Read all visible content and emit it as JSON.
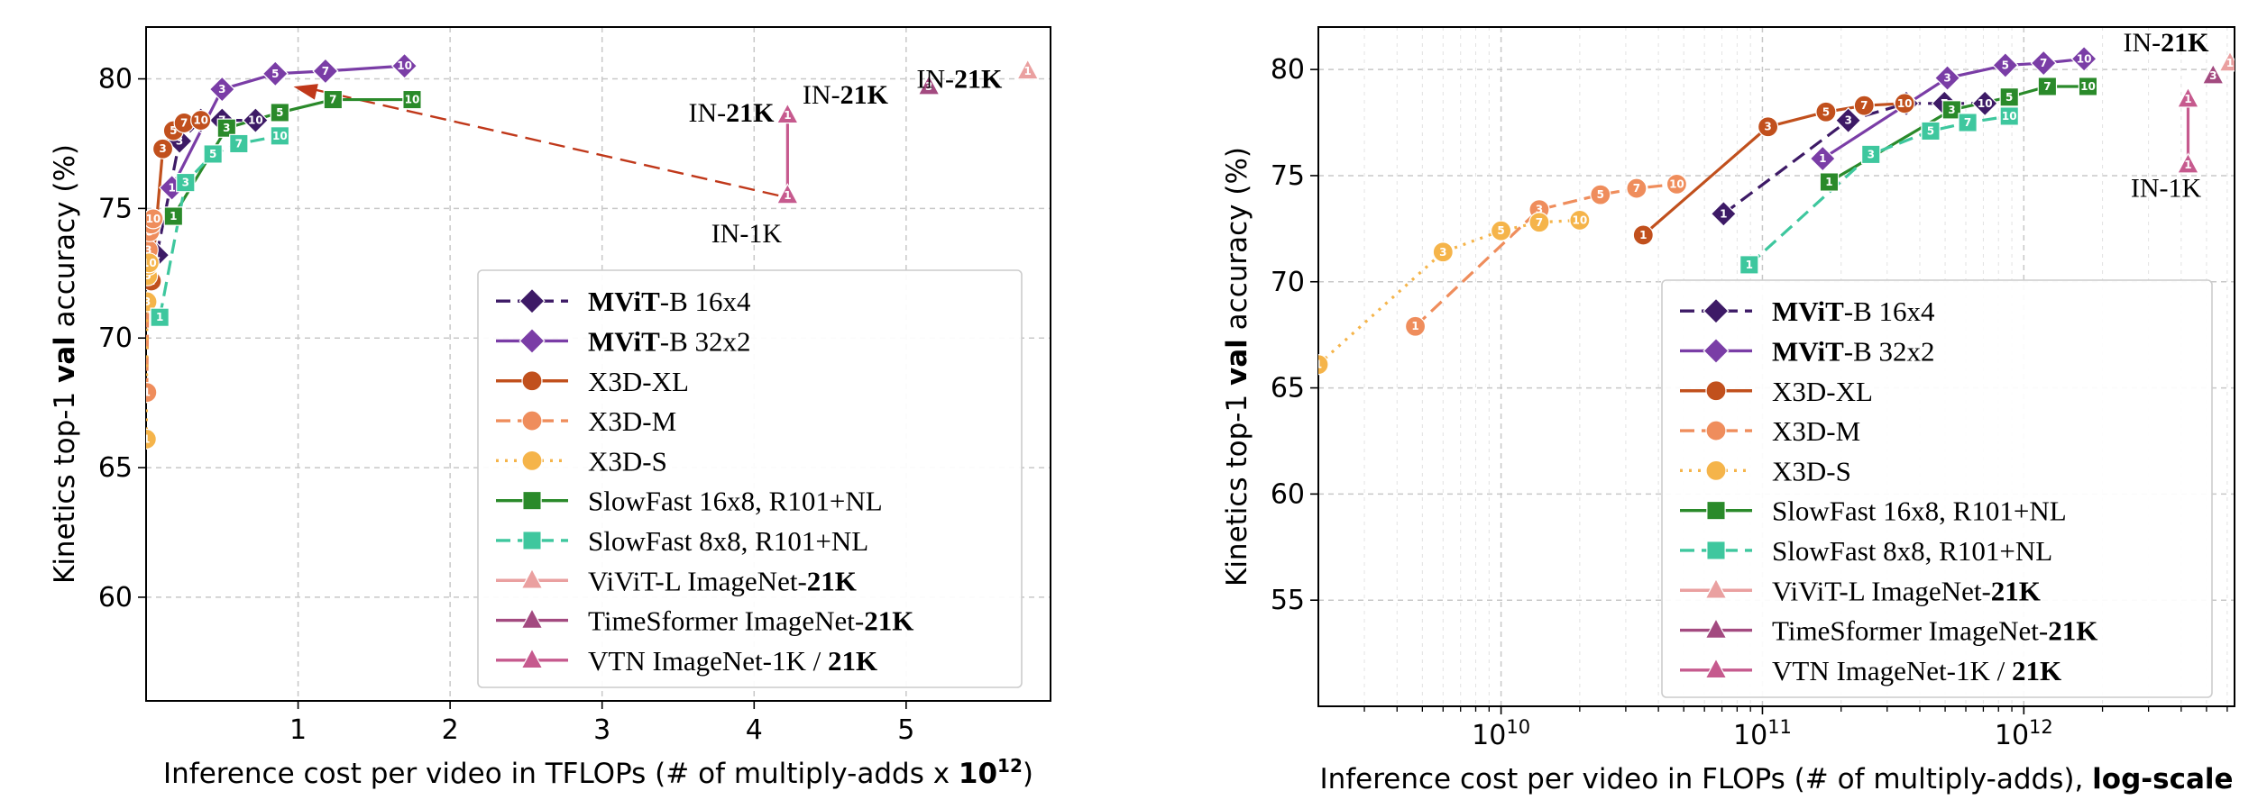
{
  "chart_data": [
    {
      "type": "line",
      "xscale": "linear",
      "xlim": [
        0.0,
        5.95
      ],
      "ylim": [
        56.0,
        82.0
      ],
      "xticks": [
        {
          "v": 1,
          "t": "1"
        },
        {
          "v": 2,
          "t": "2"
        },
        {
          "v": 3,
          "t": "3"
        },
        {
          "v": 4,
          "t": "4"
        },
        {
          "v": 5,
          "t": "5"
        }
      ],
      "yticks": [
        {
          "v": 60,
          "t": "60"
        },
        {
          "v": 65,
          "t": "65"
        },
        {
          "v": 70,
          "t": "70"
        },
        {
          "v": 75,
          "t": "75"
        },
        {
          "v": 80,
          "t": "80"
        }
      ],
      "xlabel": [
        {
          "t": "Inference cost per video in TFLOPs (# of multiply-adds x "
        },
        {
          "t": "10",
          "b": true
        },
        {
          "t": "12",
          "b": true,
          "sup": true
        },
        {
          "t": ")"
        }
      ],
      "ylabel": [
        {
          "t": "Kinetics top-1 "
        },
        {
          "t": "val",
          "b": true
        },
        {
          "t": " accuracy (%)"
        }
      ],
      "grid": true,
      "legend_position": "lower-right",
      "series": [
        {
          "key": "mvit16",
          "points": [
            [
              0.07,
              73.2,
              "1"
            ],
            [
              0.22,
              77.6,
              "3"
            ],
            [
              0.36,
              78.4,
              "5"
            ],
            [
              0.5,
              78.4,
              "7"
            ],
            [
              0.72,
              78.4,
              "10"
            ]
          ]
        },
        {
          "key": "mvit32",
          "points": [
            [
              0.17,
              75.8,
              "1"
            ],
            [
              0.5,
              79.6,
              "3"
            ],
            [
              0.85,
              80.2,
              "5"
            ],
            [
              1.18,
              80.3,
              "7"
            ],
            [
              1.7,
              80.5,
              "10"
            ]
          ]
        },
        {
          "key": "x3dxl",
          "points": [
            [
              0.035,
              72.2,
              "1"
            ],
            [
              0.11,
              77.3,
              "3"
            ],
            [
              0.18,
              78.0,
              "5"
            ],
            [
              0.25,
              78.3,
              "7"
            ],
            [
              0.36,
              78.4,
              "10"
            ]
          ]
        },
        {
          "key": "x3dm",
          "points": [
            [
              0.005,
              67.9,
              "1"
            ],
            [
              0.014,
              73.4,
              "3"
            ],
            [
              0.024,
              74.1,
              "5"
            ],
            [
              0.034,
              74.4,
              "7"
            ],
            [
              0.047,
              74.6,
              "10"
            ]
          ]
        },
        {
          "key": "x3ds",
          "points": [
            [
              0.002,
              66.1,
              "1"
            ],
            [
              0.006,
              71.4,
              "3"
            ],
            [
              0.01,
              72.4,
              "5"
            ],
            [
              0.014,
              72.8,
              "7"
            ],
            [
              0.02,
              72.9,
              "10"
            ]
          ]
        },
        {
          "key": "sf16",
          "points": [
            [
              0.18,
              74.7,
              "1"
            ],
            [
              0.53,
              78.1,
              "3"
            ],
            [
              0.88,
              78.7,
              "5"
            ],
            [
              1.23,
              79.2,
              "7"
            ],
            [
              1.75,
              79.2,
              "10"
            ]
          ]
        },
        {
          "key": "sf8",
          "points": [
            [
              0.09,
              70.8,
              "1"
            ],
            [
              0.26,
              76.0,
              "3"
            ],
            [
              0.44,
              77.1,
              "5"
            ],
            [
              0.61,
              77.5,
              "7"
            ],
            [
              0.88,
              77.8,
              "10"
            ]
          ]
        },
        {
          "key": "vivit",
          "points": [
            [
              5.8,
              80.3,
              "1"
            ]
          ]
        },
        {
          "key": "tsf",
          "points": [
            [
              5.15,
              79.7,
              "3"
            ]
          ]
        },
        {
          "key": "vtn",
          "points": [
            [
              4.22,
              75.5,
              "1"
            ],
            [
              4.22,
              78.6,
              "1"
            ]
          ]
        }
      ],
      "annotations": [
        {
          "t": "IN-21K",
          "x": 3.85,
          "y": 78.35
        },
        {
          "t": "IN-1K",
          "x": 3.95,
          "y": 73.7
        },
        {
          "t": "IN-21K",
          "x": 4.6,
          "y": 79.05
        },
        {
          "t": "IN-21K",
          "x": 5.35,
          "y": 79.65
        }
      ],
      "arrow": {
        "from": [
          4.16,
          75.5
        ],
        "to": [
          0.97,
          79.7
        ]
      }
    },
    {
      "type": "line",
      "xscale": "log",
      "xlim": [
        2000000000.0,
        6400000000000.0
      ],
      "ylim": [
        50.0,
        82.0
      ],
      "xticks": [
        {
          "v": 10000000000.0,
          "t": "10",
          "e": "10"
        },
        {
          "v": 100000000000.0,
          "t": "10",
          "e": "11"
        },
        {
          "v": 1000000000000.0,
          "t": "10",
          "e": "12"
        }
      ],
      "yticks": [
        {
          "v": 55,
          "t": "55"
        },
        {
          "v": 60,
          "t": "60"
        },
        {
          "v": 65,
          "t": "65"
        },
        {
          "v": 70,
          "t": "70"
        },
        {
          "v": 75,
          "t": "75"
        },
        {
          "v": 80,
          "t": "80"
        }
      ],
      "xlabel": [
        {
          "t": "Inference cost per video in FLOPs (# of multiply-adds), "
        },
        {
          "t": "log-scale",
          "b": true
        }
      ],
      "ylabel": [
        {
          "t": "Kinetics top-1 "
        },
        {
          "t": "val",
          "b": true
        },
        {
          "t": " accuracy (%)"
        }
      ],
      "grid": true,
      "legend_position": "lower-right",
      "series": [
        {
          "key": "mvit16",
          "points": [
            [
              71000000000.0,
              73.2,
              "1"
            ],
            [
              213000000000.0,
              77.6,
              "3"
            ],
            [
              355000000000.0,
              78.4,
              "5"
            ],
            [
              497000000000.0,
              78.4,
              "7"
            ],
            [
              710000000000.0,
              78.4,
              "10"
            ]
          ]
        },
        {
          "key": "mvit32",
          "points": [
            [
              170000000000.0,
              75.8,
              "1"
            ],
            [
              510000000000.0,
              79.6,
              "3"
            ],
            [
              850000000000.0,
              80.2,
              "5"
            ],
            [
              1190000000000.0,
              80.3,
              "7"
            ],
            [
              1700000000000.0,
              80.5,
              "10"
            ]
          ]
        },
        {
          "key": "x3dxl",
          "points": [
            [
              35000000000.0,
              72.2,
              "1"
            ],
            [
              105000000000.0,
              77.3,
              "3"
            ],
            [
              175000000000.0,
              78.0,
              "5"
            ],
            [
              245000000000.0,
              78.3,
              "7"
            ],
            [
              350000000000.0,
              78.4,
              "10"
            ]
          ]
        },
        {
          "key": "x3dm",
          "points": [
            [
              4700000000.0,
              67.9,
              "1"
            ],
            [
              14000000000.0,
              73.4,
              "3"
            ],
            [
              24000000000.0,
              74.1,
              "5"
            ],
            [
              33000000000.0,
              74.4,
              "7"
            ],
            [
              47000000000.0,
              74.6,
              "10"
            ]
          ]
        },
        {
          "key": "x3ds",
          "points": [
            [
              2000000000.0,
              66.1,
              "1"
            ],
            [
              6000000000.0,
              71.4,
              "3"
            ],
            [
              10000000000.0,
              72.4,
              "5"
            ],
            [
              14000000000.0,
              72.8,
              "7"
            ],
            [
              20000000000.0,
              72.9,
              "10"
            ]
          ]
        },
        {
          "key": "sf16",
          "points": [
            [
              180000000000.0,
              74.7,
              "1"
            ],
            [
              530000000000.0,
              78.1,
              "3"
            ],
            [
              880000000000.0,
              78.7,
              "5"
            ],
            [
              1230000000000.0,
              79.2,
              "7"
            ],
            [
              1760000000000.0,
              79.2,
              "10"
            ]
          ]
        },
        {
          "key": "sf8",
          "points": [
            [
              89000000000.0,
              70.8,
              "1"
            ],
            [
              260000000000.0,
              76.0,
              "3"
            ],
            [
              440000000000.0,
              77.1,
              "5"
            ],
            [
              610000000000.0,
              77.5,
              "7"
            ],
            [
              880000000000.0,
              77.8,
              "10"
            ]
          ]
        },
        {
          "key": "vivit",
          "points": [
            [
              6150000000000.0,
              80.3,
              "1"
            ]
          ]
        },
        {
          "key": "tsf",
          "points": [
            [
              5300000000000.0,
              79.7,
              "3"
            ]
          ]
        },
        {
          "key": "vtn",
          "points": [
            [
              4250000000000.0,
              75.5,
              "1"
            ],
            [
              4250000000000.0,
              78.6,
              "1"
            ]
          ]
        }
      ],
      "annotations": [
        {
          "t": "IN-21K",
          "x": 3500000000000.0,
          "y": 80.85
        },
        {
          "t": "IN-1K",
          "x": 3500000000000.0,
          "y": 74.0
        }
      ]
    }
  ],
  "legend": [
    {
      "key": "mvit16",
      "label": [
        {
          "t": "MViT",
          "b": true
        },
        {
          "t": "-B 16x4"
        }
      ],
      "color": "#3d1a66",
      "marker": "diamond",
      "dash": "dash",
      "fill": "#3d1a66"
    },
    {
      "key": "mvit32",
      "label": [
        {
          "t": "MViT",
          "b": true
        },
        {
          "t": "-B 32x2"
        }
      ],
      "color": "#7a3da6",
      "marker": "diamond",
      "dash": "solid",
      "fill": "#7a3da6"
    },
    {
      "key": "x3dxl",
      "label": [
        {
          "t": "X3D-XL"
        }
      ],
      "color": "#c1501d",
      "marker": "circle",
      "dash": "solid",
      "fill": "#c1501d"
    },
    {
      "key": "x3dm",
      "label": [
        {
          "t": "X3D-M"
        }
      ],
      "color": "#ef8d5c",
      "marker": "circle",
      "dash": "dash",
      "fill": "#ef8d5c"
    },
    {
      "key": "x3ds",
      "label": [
        {
          "t": "X3D-S"
        }
      ],
      "color": "#f5b44a",
      "marker": "circle",
      "dash": "dot",
      "fill": "#f5b44a"
    },
    {
      "key": "sf16",
      "label": [
        {
          "t": "SlowFast 16x8, R101+NL"
        }
      ],
      "color": "#2a8a2a",
      "marker": "square",
      "dash": "solid",
      "fill": "#2a8a2a"
    },
    {
      "key": "sf8",
      "label": [
        {
          "t": "SlowFast 8x8, R101+NL"
        }
      ],
      "color": "#3ec79e",
      "marker": "square",
      "dash": "dash",
      "fill": "#3ec79e"
    },
    {
      "key": "vivit",
      "label": [
        {
          "t": "ViViT-L ImageNet-"
        },
        {
          "t": "21K",
          "b": true
        }
      ],
      "color": "#eaa0a0",
      "marker": "triangle",
      "dash": "solid",
      "fill": "#eaa0a0"
    },
    {
      "key": "tsf",
      "label": [
        {
          "t": "TimeSformer ImageNet-"
        },
        {
          "t": "21K",
          "b": true
        }
      ],
      "color": "#a34a80",
      "marker": "triangle",
      "dash": "solid",
      "fill": "#a34a80"
    },
    {
      "key": "vtn",
      "label": [
        {
          "t": "VTN ImageNet-1K / "
        },
        {
          "t": "21K",
          "b": true
        }
      ],
      "color": "#c65a8e",
      "marker": "triangle",
      "dash": "solid",
      "fill": "#c65a8e"
    }
  ],
  "arrow_color": "#c0381a",
  "grid_color": "#c8c8c8"
}
